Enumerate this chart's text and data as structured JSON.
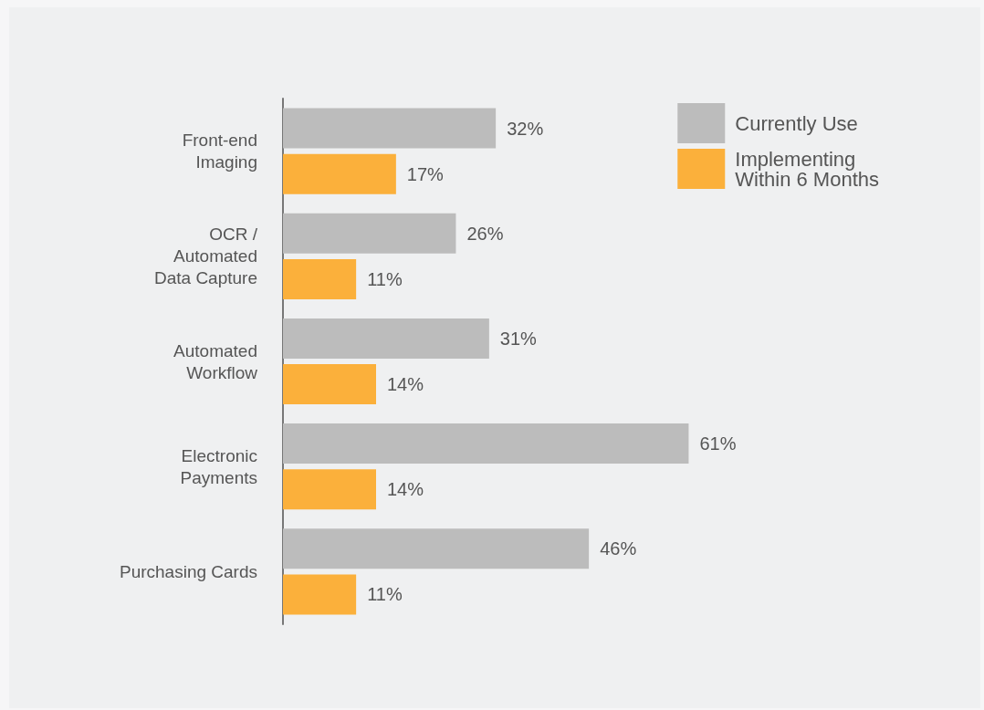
{
  "chart_data": {
    "type": "bar",
    "orientation": "horizontal",
    "categories": [
      "Front-end\nImaging",
      "OCR /\nAutomated\nData Capture",
      "Automated\nWorkflow",
      "Electronic\nPayments",
      "Purchasing Cards"
    ],
    "series": [
      {
        "name": "Currently Use",
        "color": "#bcbcbc",
        "values": [
          32,
          26,
          31,
          61,
          46
        ],
        "value_labels": [
          "32%",
          "26%",
          "31%",
          "61%",
          "46%"
        ]
      },
      {
        "name": "Implementing\nWithin 6 Months",
        "color": "#fbb03b",
        "values": [
          17,
          11,
          14,
          14,
          11
        ],
        "value_labels": [
          "17%",
          "11%",
          "14%",
          "14%",
          "11%"
        ]
      }
    ],
    "legend": "top right"
  }
}
